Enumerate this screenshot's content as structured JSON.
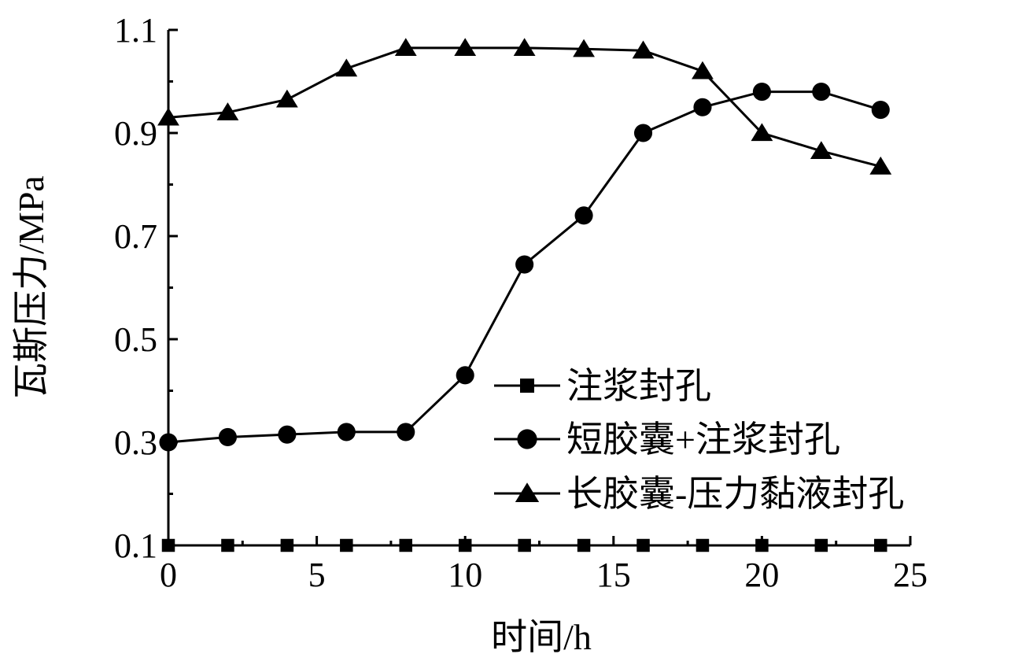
{
  "chart_data": {
    "type": "line",
    "title": "",
    "xlabel": "时间/h",
    "ylabel": "瓦斯压力/MPa",
    "xlim": [
      0,
      25
    ],
    "ylim": [
      0.1,
      1.1
    ],
    "x_ticks": [
      "0",
      "5",
      "10",
      "15",
      "20",
      "25"
    ],
    "y_ticks": [
      "0.1",
      "0.3",
      "0.5",
      "0.7",
      "0.9",
      "1.1"
    ],
    "grid": false,
    "legend_position": "center-right",
    "x": [
      0,
      2,
      4,
      6,
      8,
      10,
      12,
      14,
      16,
      18,
      20,
      22,
      24
    ],
    "series": [
      {
        "name": "注浆封孔",
        "marker": "square",
        "color": "#000000",
        "values": [
          0.1,
          0.1,
          0.1,
          0.1,
          0.1,
          0.1,
          0.1,
          0.1,
          0.1,
          0.1,
          0.1,
          0.1,
          0.1
        ]
      },
      {
        "name": "短胶囊+注浆封孔",
        "marker": "circle",
        "color": "#000000",
        "values": [
          0.3,
          0.31,
          0.315,
          0.32,
          0.32,
          0.43,
          0.645,
          0.74,
          0.9,
          0.95,
          0.98,
          0.98,
          0.945
        ]
      },
      {
        "name": "长胶囊-压力黏液封孔",
        "marker": "triangle",
        "color": "#000000",
        "values": [
          0.93,
          0.94,
          0.965,
          1.025,
          1.065,
          1.065,
          1.065,
          1.063,
          1.06,
          1.02,
          0.9,
          0.865,
          0.835
        ]
      }
    ]
  }
}
